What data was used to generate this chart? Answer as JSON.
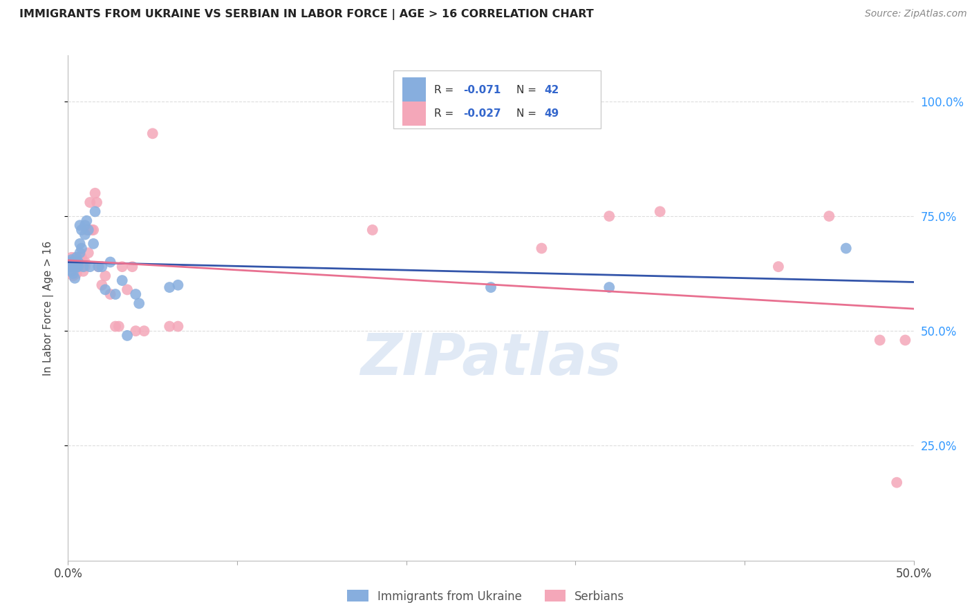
{
  "title": "IMMIGRANTS FROM UKRAINE VS SERBIAN IN LABOR FORCE | AGE > 16 CORRELATION CHART",
  "source": "Source: ZipAtlas.com",
  "ylabel": "In Labor Force | Age > 16",
  "yticks": [
    "25.0%",
    "50.0%",
    "75.0%",
    "100.0%"
  ],
  "ytick_vals": [
    0.25,
    0.5,
    0.75,
    1.0
  ],
  "xlim": [
    0.0,
    0.5
  ],
  "ylim": [
    0.0,
    1.1
  ],
  "ukraine_color": "#87AEDE",
  "serbian_color": "#F4A7B9",
  "ukraine_line_color": "#3355AA",
  "serbian_line_color": "#E87090",
  "legend_r_ukraine": "-0.071",
  "legend_n_ukraine": "42",
  "legend_r_serbian": "-0.027",
  "legend_n_serbian": "49",
  "ukraine_x": [
    0.001,
    0.001,
    0.002,
    0.002,
    0.002,
    0.003,
    0.003,
    0.003,
    0.004,
    0.004,
    0.005,
    0.005,
    0.005,
    0.006,
    0.006,
    0.007,
    0.007,
    0.007,
    0.008,
    0.008,
    0.009,
    0.01,
    0.01,
    0.011,
    0.012,
    0.013,
    0.015,
    0.016,
    0.018,
    0.02,
    0.022,
    0.025,
    0.028,
    0.032,
    0.035,
    0.04,
    0.042,
    0.06,
    0.065,
    0.25,
    0.32,
    0.46
  ],
  "ukraine_y": [
    0.64,
    0.65,
    0.64,
    0.655,
    0.63,
    0.64,
    0.65,
    0.625,
    0.645,
    0.615,
    0.65,
    0.64,
    0.66,
    0.65,
    0.64,
    0.67,
    0.69,
    0.73,
    0.68,
    0.72,
    0.64,
    0.73,
    0.71,
    0.74,
    0.72,
    0.64,
    0.69,
    0.76,
    0.64,
    0.64,
    0.59,
    0.65,
    0.58,
    0.61,
    0.49,
    0.58,
    0.56,
    0.595,
    0.6,
    0.595,
    0.595,
    0.68
  ],
  "serbian_x": [
    0.001,
    0.002,
    0.002,
    0.003,
    0.003,
    0.004,
    0.005,
    0.005,
    0.005,
    0.006,
    0.006,
    0.007,
    0.007,
    0.008,
    0.008,
    0.009,
    0.009,
    0.01,
    0.01,
    0.011,
    0.012,
    0.013,
    0.014,
    0.015,
    0.016,
    0.017,
    0.018,
    0.02,
    0.022,
    0.025,
    0.028,
    0.03,
    0.032,
    0.035,
    0.038,
    0.04,
    0.045,
    0.05,
    0.06,
    0.065,
    0.18,
    0.28,
    0.32,
    0.35,
    0.42,
    0.45,
    0.48,
    0.49,
    0.495
  ],
  "serbian_y": [
    0.64,
    0.64,
    0.66,
    0.65,
    0.62,
    0.66,
    0.64,
    0.655,
    0.625,
    0.64,
    0.66,
    0.64,
    0.66,
    0.64,
    0.66,
    0.63,
    0.65,
    0.64,
    0.65,
    0.72,
    0.67,
    0.78,
    0.72,
    0.72,
    0.8,
    0.78,
    0.64,
    0.6,
    0.62,
    0.58,
    0.51,
    0.51,
    0.64,
    0.59,
    0.64,
    0.5,
    0.5,
    0.93,
    0.51,
    0.51,
    0.72,
    0.68,
    0.75,
    0.76,
    0.64,
    0.75,
    0.48,
    0.17,
    0.48
  ],
  "watermark_text": "ZIPatlas",
  "background_color": "#ffffff",
  "grid_color": "#dddddd",
  "xtick_positions": [
    0.0,
    0.1,
    0.2,
    0.3,
    0.4,
    0.5
  ],
  "xtick_labels": [
    "0.0%",
    "",
    "",
    "",
    "",
    "50.0%"
  ]
}
